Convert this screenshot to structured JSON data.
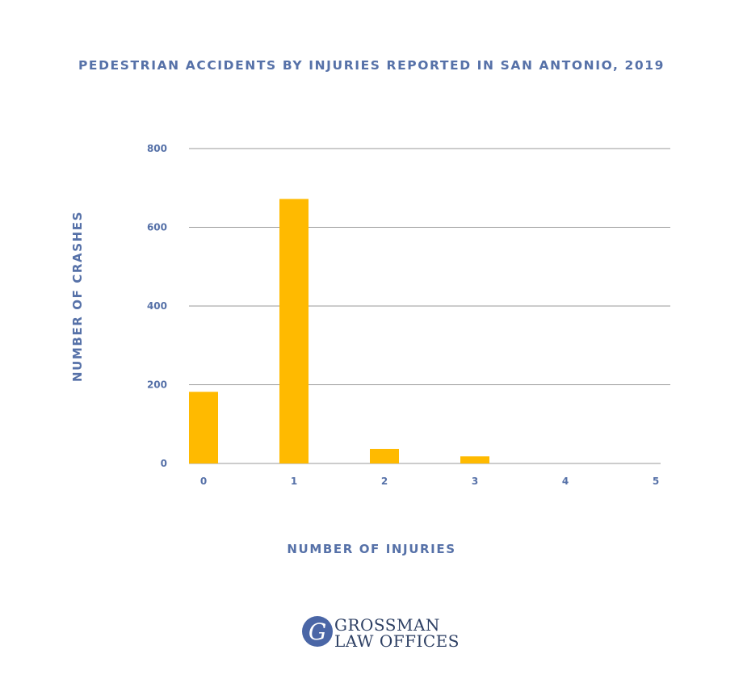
{
  "chart_data": {
    "type": "bar",
    "title": "PEDESTRIAN ACCIDENTS BY INJURIES REPORTED IN SAN ANTONIO, 2019",
    "xlabel": "NUMBER OF INJURIES",
    "ylabel": "NUMBER OF CRASHES",
    "categories": [
      "0",
      "1",
      "2",
      "3",
      "4",
      "5"
    ],
    "values": [
      182,
      672,
      37,
      18,
      0,
      0
    ],
    "ylim": [
      0,
      800
    ],
    "yticks": [
      "0",
      "200",
      "400",
      "600",
      "800"
    ],
    "grid": true,
    "bar_color": "#ffba00",
    "text_color": "#5671a8"
  },
  "logo": {
    "letter": "G",
    "line1": "GROSSMAN",
    "line2": "LAW OFFICES",
    "circle_color": "#4a66a6"
  }
}
